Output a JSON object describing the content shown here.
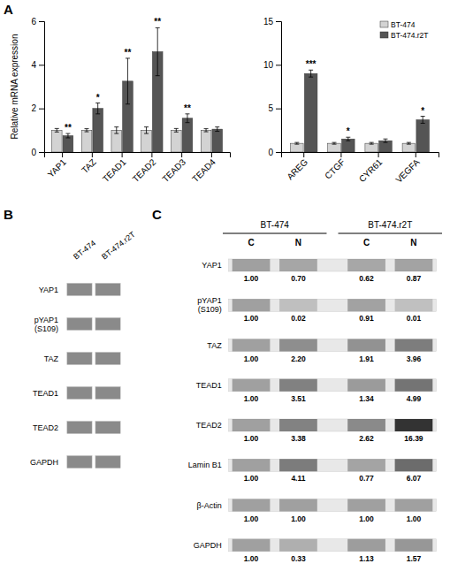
{
  "chart_data": [
    {
      "type": "bar",
      "title": "A",
      "categories": [
        "YAP1",
        "TAZ",
        "TEAD1",
        "TEAD2",
        "TEAD3",
        "TEAD4"
      ],
      "series": [
        {
          "name": "BT-474",
          "color": "#d3d3d3",
          "values": [
            1.0,
            1.0,
            1.0,
            1.0,
            1.0,
            1.0
          ],
          "errors": [
            0.08,
            0.07,
            0.15,
            0.15,
            0.08,
            0.07
          ]
        },
        {
          "name": "BT-474.r2T",
          "color": "#555555",
          "values": [
            0.75,
            2.0,
            3.25,
            4.6,
            1.55,
            1.05
          ],
          "errors": [
            0.1,
            0.25,
            1.05,
            1.1,
            0.2,
            0.1
          ]
        }
      ],
      "annotations": [
        "**",
        "*",
        "**",
        "**",
        "**",
        null
      ],
      "ylabel": "Relative mRNA expression",
      "ylim": [
        0,
        6
      ],
      "yticks": [
        0,
        2,
        4,
        6
      ],
      "grid": false
    },
    {
      "type": "bar",
      "categories": [
        "AREG",
        "CTGF",
        "CYR61",
        "VEGFA"
      ],
      "series": [
        {
          "name": "BT-474",
          "color": "#d3d3d3",
          "values": [
            1.0,
            1.0,
            1.0,
            1.0
          ],
          "errors": [
            0.1,
            0.1,
            0.1,
            0.1
          ]
        },
        {
          "name": "BT-474.r2T",
          "color": "#555555",
          "values": [
            9.0,
            1.5,
            1.3,
            3.7
          ],
          "errors": [
            0.4,
            0.2,
            0.2,
            0.4
          ]
        }
      ],
      "annotations": [
        "***",
        "*",
        null,
        "*"
      ],
      "ylim": [
        0,
        15
      ],
      "yticks": [
        0,
        5,
        10,
        15
      ],
      "grid": false,
      "legend": "upper right"
    },
    {
      "type": "blot",
      "title": "B",
      "categories": [
        "YAP1",
        "pYAP1\n(S109)",
        "TAZ",
        "TEAD1",
        "TEAD2",
        "GAPDH"
      ],
      "series": [
        {
          "name": "BT-474"
        },
        {
          "name": "BT-474.r2T"
        }
      ]
    },
    {
      "type": "blot",
      "title": "C",
      "categories": [
        "YAP1",
        "pYAP1\n(S109)",
        "TAZ",
        "TEAD1",
        "TEAD2",
        "Lamin B1",
        "β-Actin",
        "GAPDH"
      ],
      "series": [
        {
          "name": "C",
          "group": "BT-474",
          "values": [
            1.0,
            1.0,
            1.0,
            1.0,
            1.0,
            1.0,
            1.0,
            1.0
          ],
          "value_labels": [
            "1.00",
            "1.00",
            "1.00",
            "1.00",
            "1.00",
            "1.00",
            "1.00",
            "1.00"
          ]
        },
        {
          "name": "N",
          "group": "BT-474",
          "values": [
            0.7,
            0.02,
            2.2,
            3.51,
            3.38,
            4.11,
            1.0,
            0.33
          ],
          "value_labels": [
            "0.70",
            "0.02",
            "2.20",
            "3.51",
            "3.38",
            "4.11",
            "1.00",
            "0.33"
          ]
        },
        {
          "name": "C",
          "group": "BT-474.r2T",
          "values": [
            0.62,
            0.91,
            1.91,
            1.34,
            2.62,
            0.77,
            1.0,
            1.13
          ],
          "value_labels": [
            "0.62",
            "0.91",
            "1.91",
            "1.34",
            "2.62",
            "0.77",
            "1.00",
            "1.13"
          ]
        },
        {
          "name": "N",
          "group": "BT-474.r2T",
          "values": [
            0.87,
            0.01,
            3.96,
            4.99,
            16.39,
            6.07,
            1.0,
            1.57
          ],
          "value_labels": [
            "0.87",
            "0.01",
            "3.96",
            "4.99",
            "16.39",
            "6.07",
            "1.00",
            "1.57"
          ]
        }
      ],
      "data_labels": true
    }
  ]
}
